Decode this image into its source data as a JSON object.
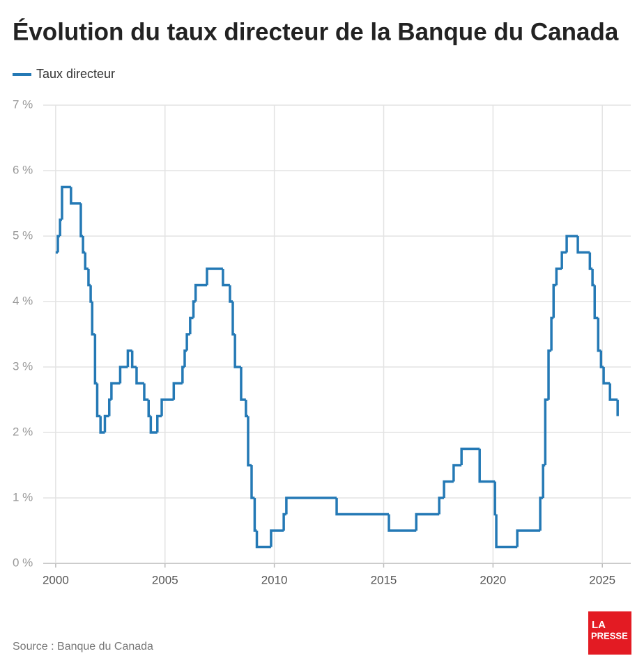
{
  "chart_data": {
    "type": "line",
    "drawstyle": "steps-post",
    "title": "Évolution du taux directeur de la Banque du Canada",
    "source": "Source : Banque du Canada",
    "logo": [
      "LA",
      "PRESSE"
    ],
    "grid": true,
    "legend": "top-left",
    "xlim": [
      1999.43,
      2026.3
    ],
    "xticks": [
      2000,
      2005,
      2010,
      2015,
      2020,
      2025
    ],
    "ylim": [
      0,
      7
    ],
    "yticks": [
      {
        "value": 0,
        "label": "0 %"
      },
      {
        "value": 1,
        "label": "1 %"
      },
      {
        "value": 2,
        "label": "2 %"
      },
      {
        "value": 3,
        "label": "3 %"
      },
      {
        "value": 4,
        "label": "4 %"
      },
      {
        "value": 5,
        "label": "5 %"
      },
      {
        "value": 6,
        "label": "6 %"
      },
      {
        "value": 7,
        "label": "7 %"
      }
    ],
    "x": [
      2000.0,
      2000.1,
      2000.2,
      2000.29,
      2000.7,
      2001.15,
      2001.25,
      2001.35,
      2001.5,
      2001.6,
      2001.67,
      2001.8,
      2001.9,
      2002.05,
      2002.25,
      2002.45,
      2002.55,
      2002.95,
      2003.3,
      2003.5,
      2003.7,
      2004.05,
      2004.25,
      2004.35,
      2004.65,
      2004.85,
      2005.4,
      2005.8,
      2005.9,
      2006.0,
      2006.15,
      2006.3,
      2006.4,
      2006.92,
      2007.65,
      2007.97,
      2008.1,
      2008.2,
      2008.48,
      2008.7,
      2008.8,
      2008.96,
      2009.1,
      2009.2,
      2009.85,
      2010.43,
      2010.55,
      2012.85,
      2015.24,
      2016.49,
      2017.54,
      2017.76,
      2018.2,
      2018.56,
      2019.39,
      2020.09,
      2020.15,
      2021.11,
      2022.16,
      2022.29,
      2022.39,
      2022.54,
      2022.67,
      2022.77,
      2022.9,
      2023.15,
      2023.37,
      2023.88,
      2024.43,
      2024.55,
      2024.65,
      2024.81,
      2024.94,
      2025.06,
      2025.35,
      2025.7
    ],
    "series": [
      {
        "name": "Taux directeur",
        "color": "#2479b5",
        "values": [
          4.75,
          5.0,
          5.25,
          5.75,
          5.5,
          5.0,
          4.75,
          4.5,
          4.25,
          4.0,
          3.5,
          2.75,
          2.25,
          2.0,
          2.25,
          2.5,
          2.75,
          3.0,
          3.25,
          3.0,
          2.75,
          2.5,
          2.25,
          2.0,
          2.25,
          2.5,
          2.75,
          3.0,
          3.25,
          3.5,
          3.75,
          4.0,
          4.25,
          4.5,
          4.25,
          4.0,
          3.5,
          3.0,
          2.5,
          2.25,
          1.5,
          1.0,
          0.5,
          0.25,
          0.5,
          0.75,
          1.0,
          0.75,
          0.5,
          0.75,
          1.0,
          1.25,
          1.5,
          1.75,
          1.25,
          0.75,
          0.25,
          0.5,
          1.0,
          1.5,
          2.5,
          3.25,
          3.75,
          4.25,
          4.5,
          4.75,
          5.0,
          4.75,
          4.5,
          4.25,
          3.75,
          3.25,
          3.0,
          2.75,
          2.5,
          2.25
        ]
      }
    ]
  }
}
